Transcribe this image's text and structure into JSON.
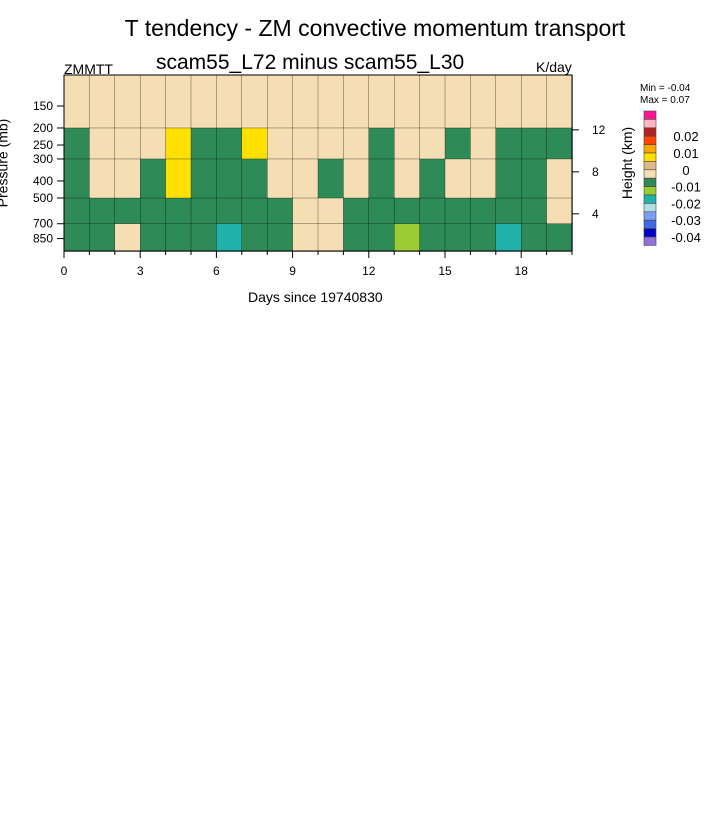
{
  "chart_data": {
    "type": "heatmap",
    "title": "T tendency - ZM convective momentum transport",
    "subtitle": "scam55_L72 minus scam55_L30",
    "left_label": "ZMMTT",
    "units": "K/day",
    "xlabel": "Days since 19740830",
    "ylabel": "Pressure (mb)",
    "y2label": "Height (km)",
    "xlim": [
      0,
      20
    ],
    "ylim": [
      1000,
      100
    ],
    "yscale": "log",
    "xticks": [
      0,
      3,
      6,
      9,
      12,
      15,
      18
    ],
    "yticks": [
      150,
      200,
      250,
      300,
      400,
      500,
      700,
      850
    ],
    "y2ticks": [
      {
        "label": "12",
        "p": 205
      },
      {
        "label": "8",
        "p": 355
      },
      {
        "label": "4",
        "p": 615
      }
    ],
    "min_label": "Min =  -0.04",
    "max_label": "Max =   0.07",
    "levels": [
      -0.035,
      -0.03,
      -0.025,
      -0.02,
      -0.015,
      -0.01,
      -0.005,
      0,
      0.005,
      0.01,
      0.015,
      0.02,
      0.025,
      0.03,
      0.035
    ],
    "colorbar_labels": [
      "0.02",
      "0.01",
      "0",
      "-0.01",
      "-0.02",
      "-0.03",
      "-0.04"
    ],
    "colors": [
      "#ff1493",
      "#ffb6c1",
      "#b22222",
      "#ff4500",
      "#ffa500",
      "#ffe000",
      "#deb887",
      "#f5deb3",
      "#2e8b57",
      "#9acd32",
      "#20b2aa",
      "#b0e0e6",
      "#7b9ff5",
      "#4169e1",
      "#0000cd",
      "#9370db"
    ],
    "grid_p_edges": [
      100,
      200,
      300,
      500,
      700,
      1000
    ],
    "grid_values": [
      [
        0.002,
        0.002,
        0.002,
        0.002,
        0.002,
        0.002,
        0.002,
        0.002,
        0.002,
        0.002,
        0.002,
        0.002,
        0.002,
        0.002,
        0.002,
        0.002,
        0.002,
        0.002,
        0.002,
        0.002
      ],
      [
        -0.002,
        0.002,
        0.002,
        0.002,
        0.012,
        -0.002,
        -0.002,
        0.012,
        0.002,
        0.002,
        0.002,
        0.002,
        -0.002,
        0.002,
        0.002,
        -0.002,
        0.002,
        -0.002,
        -0.002,
        -0.002
      ],
      [
        -0.002,
        0.002,
        0.002,
        -0.002,
        0.012,
        -0.002,
        -0.002,
        -0.002,
        0.002,
        0.002,
        -0.002,
        0.002,
        -0.002,
        0.002,
        -0.002,
        0.002,
        0.002,
        -0.002,
        -0.002,
        0.002
      ],
      [
        -0.002,
        -0.002,
        -0.002,
        -0.002,
        -0.002,
        -0.002,
        -0.002,
        -0.002,
        -0.002,
        0.002,
        0.002,
        -0.002,
        -0.002,
        -0.002,
        -0.002,
        -0.002,
        -0.002,
        -0.002,
        -0.002,
        0.002
      ],
      [
        -0.002,
        -0.002,
        0.002,
        -0.002,
        -0.002,
        -0.002,
        -0.012,
        -0.002,
        -0.002,
        0.002,
        0.002,
        -0.002,
        -0.002,
        -0.007,
        -0.002,
        -0.002,
        -0.002,
        -0.012,
        -0.002,
        -0.002
      ]
    ]
  }
}
